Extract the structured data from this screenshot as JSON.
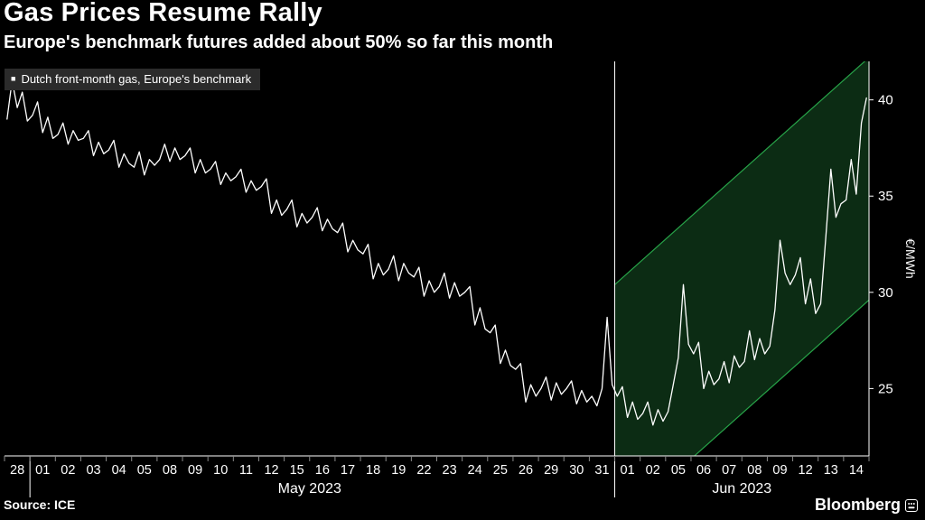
{
  "header": {
    "title": "Gas Prices Resume Rally",
    "subtitle": "Europe's benchmark futures added about 50% so far this month"
  },
  "legend": {
    "marker": "■",
    "label": "Dutch front-month gas, Europe's benchmark"
  },
  "footer": {
    "source": "Source: ICE",
    "brand": "Bloomberg"
  },
  "chart_data": {
    "type": "line",
    "title": "Gas Prices Resume Rally",
    "series_name": "Dutch front-month gas, Europe's benchmark",
    "ylabel": "€/MWh",
    "ylim": [
      21.5,
      42.0
    ],
    "yticks": [
      25,
      30,
      35,
      40
    ],
    "grid": false,
    "legend_position": "top-left",
    "days": [
      "28",
      "01",
      "02",
      "03",
      "04",
      "05",
      "08",
      "09",
      "10",
      "11",
      "12",
      "15",
      "16",
      "17",
      "18",
      "19",
      "22",
      "23",
      "24",
      "25",
      "26",
      "29",
      "30",
      "31",
      "01",
      "02",
      "05",
      "06",
      "07",
      "08",
      "09",
      "12",
      "13",
      "14"
    ],
    "points_per_day": 5,
    "values": [
      39.0,
      41.0,
      39.6,
      40.4,
      38.9,
      39.2,
      39.9,
      38.3,
      39.1,
      38.0,
      38.2,
      38.8,
      37.7,
      38.4,
      37.9,
      38.0,
      38.4,
      37.1,
      37.8,
      37.2,
      37.4,
      37.9,
      36.5,
      37.2,
      36.7,
      36.5,
      37.3,
      36.1,
      36.9,
      36.6,
      36.9,
      37.7,
      36.8,
      37.5,
      36.9,
      37.1,
      37.5,
      36.2,
      36.9,
      36.2,
      36.4,
      36.8,
      35.6,
      36.2,
      35.8,
      36.0,
      36.4,
      35.2,
      35.8,
      35.3,
      35.5,
      35.9,
      34.1,
      34.8,
      34.0,
      34.3,
      34.8,
      33.4,
      34.1,
      33.6,
      33.9,
      34.4,
      33.2,
      33.8,
      33.3,
      33.1,
      33.6,
      32.1,
      32.7,
      32.2,
      32.0,
      32.5,
      30.7,
      31.5,
      30.9,
      31.2,
      31.9,
      30.6,
      31.5,
      31.0,
      30.8,
      31.3,
      29.8,
      30.6,
      30.0,
      30.3,
      31.0,
      29.7,
      30.5,
      29.8,
      30.0,
      30.3,
      28.3,
      29.2,
      28.1,
      27.9,
      28.3,
      26.3,
      27.0,
      26.2,
      26.0,
      26.3,
      24.3,
      25.2,
      24.6,
      25.0,
      25.6,
      24.4,
      25.3,
      24.7,
      25.0,
      25.4,
      24.2,
      24.9,
      24.3,
      24.6,
      24.1,
      25.0,
      28.7,
      25.2,
      24.6,
      25.1,
      23.5,
      24.3,
      23.4,
      23.7,
      24.3,
      23.1,
      23.9,
      23.3,
      23.8,
      25.2,
      26.6,
      30.4,
      27.3,
      26.8,
      27.4,
      25.0,
      25.9,
      25.2,
      25.5,
      26.4,
      25.3,
      26.7,
      26.1,
      26.4,
      28.0,
      26.5,
      27.6,
      26.8,
      27.2,
      29.1,
      32.7,
      31.0,
      30.4,
      30.9,
      31.8,
      29.4,
      30.7,
      28.9,
      29.4,
      32.8,
      36.4,
      33.9,
      34.6,
      34.8,
      36.9,
      35.1,
      38.8,
      40.1
    ],
    "month_groups": [
      {
        "label": "May 2023",
        "start_day": 0,
        "end_day": 24
      },
      {
        "label": "Jun 2023",
        "start_day": 24,
        "end_day": 34
      }
    ],
    "month_separators": [
      {
        "day": 1,
        "full_height": false
      },
      {
        "day": 24,
        "full_height": true
      }
    ],
    "channel": {
      "start_day": 24,
      "end_day": 34,
      "upper": [
        30.4,
        42.2
      ],
      "lower": [
        17.8,
        29.6
      ],
      "fill": "#0c2c14",
      "stroke": "#27a348"
    },
    "colors": {
      "background": "#000000",
      "line": "#ffffff",
      "axis": "#ffffff",
      "tick": "#8a8a8a"
    }
  }
}
